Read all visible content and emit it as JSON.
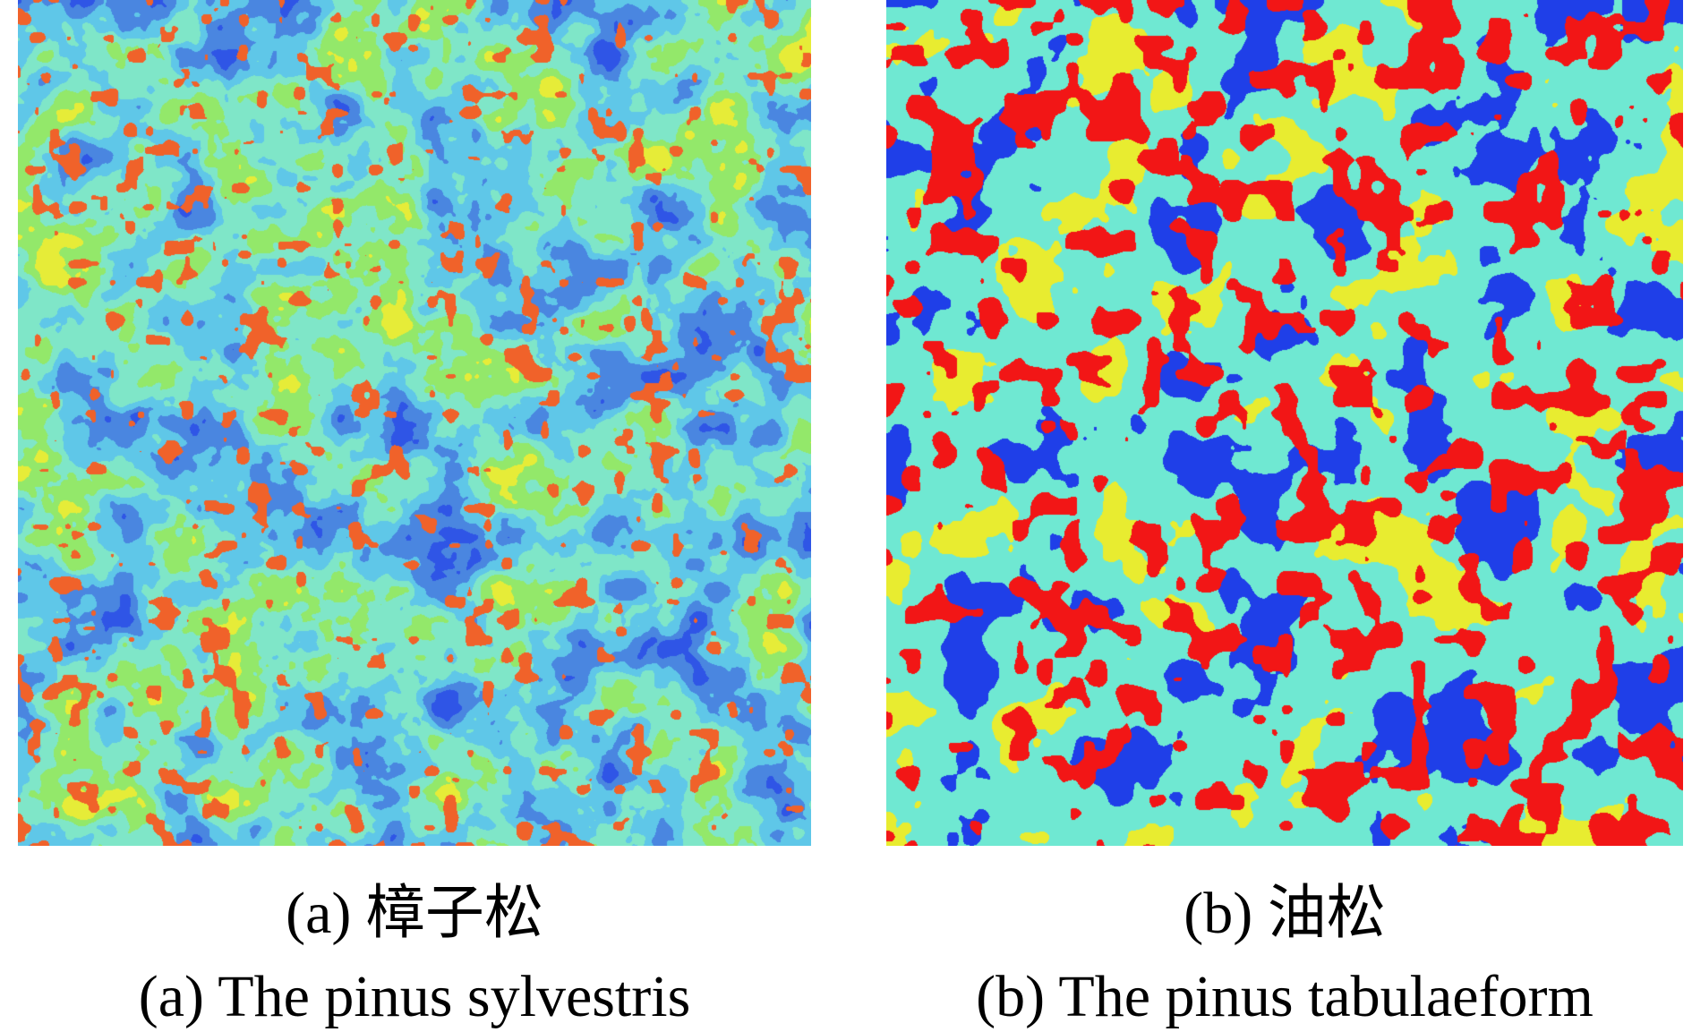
{
  "figure": {
    "panels": [
      {
        "caption_cn": "(a) 樟子松",
        "caption_en": "(a) The pinus sylvestris",
        "palette": [
          "#2f55e6",
          "#4a86e0",
          "#5fc7e8",
          "#7fe6c8",
          "#93e86a",
          "#e6ec38",
          "#f0622a"
        ]
      },
      {
        "caption_cn": "(b) 油松",
        "caption_en": "(b) The pinus tabulaeform",
        "palette": [
          "#1f3fe8",
          "#6fe8d2",
          "#e8ec30",
          "#f21616"
        ]
      }
    ]
  }
}
